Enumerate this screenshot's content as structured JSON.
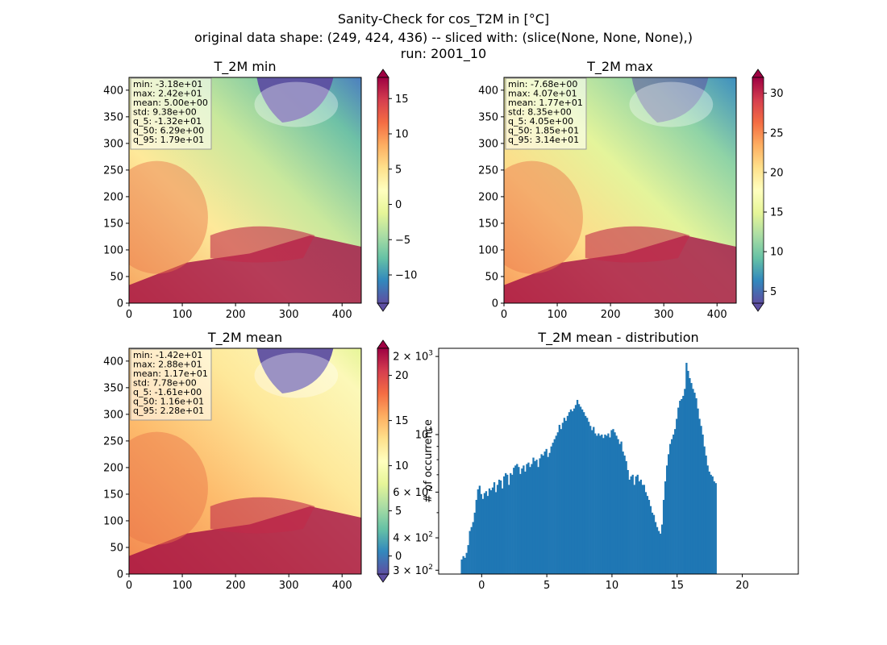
{
  "suptitle": {
    "line1": "Sanity-Check for cos_T2M in [°C]",
    "line2": "original data shape: (249, 424, 436) -- sliced with: (slice(None, None, None),)",
    "line3": "run: 2001_10"
  },
  "colors": {
    "hist_bar": "#1f77b4",
    "land_warm": "#e8744a",
    "sea_hot": "#9e0142",
    "cold": "#5e4fa2"
  },
  "colormap": "Spectral_r",
  "chart_data": [
    {
      "type": "heatmap",
      "title": "T_2M min",
      "xlim": [
        0,
        436
      ],
      "ylim": [
        0,
        424
      ],
      "xticks": [
        0,
        100,
        200,
        300,
        400
      ],
      "yticks": [
        0,
        50,
        100,
        150,
        200,
        250,
        300,
        350,
        400
      ],
      "colorbar": {
        "vmin": -14,
        "vmax": 18,
        "ticks": [
          -10,
          -5,
          0,
          5,
          10,
          15
        ],
        "extend": "both"
      },
      "stats": [
        "min: -3.18e+01",
        "max: 2.42e+01",
        "mean: 5.00e+00",
        "std: 9.38e+00",
        "q_5: -1.32e+01",
        "q_50: 6.29e+00",
        "q_95: 1.79e+01"
      ]
    },
    {
      "type": "heatmap",
      "title": "T_2M max",
      "xlim": [
        0,
        436
      ],
      "ylim": [
        0,
        424
      ],
      "xticks": [
        0,
        100,
        200,
        300,
        400
      ],
      "yticks": [
        0,
        50,
        100,
        150,
        200,
        250,
        300,
        350,
        400
      ],
      "colorbar": {
        "vmin": 3.5,
        "vmax": 32,
        "ticks": [
          5,
          10,
          15,
          20,
          25,
          30
        ],
        "extend": "both"
      },
      "stats": [
        "min: -7.68e+00",
        "max: 4.07e+01",
        "mean: 1.77e+01",
        "std: 8.35e+00",
        "q_5: 4.05e+00",
        "q_50: 1.85e+01",
        "q_95: 3.14e+01"
      ]
    },
    {
      "type": "heatmap",
      "title": "T_2M mean",
      "xlim": [
        0,
        436
      ],
      "ylim": [
        0,
        424
      ],
      "xticks": [
        0,
        100,
        200,
        300,
        400
      ],
      "yticks": [
        0,
        50,
        100,
        150,
        200,
        250,
        300,
        350,
        400
      ],
      "colorbar": {
        "vmin": -2,
        "vmax": 23,
        "ticks": [
          0,
          5,
          10,
          15,
          20
        ],
        "extend": "both"
      },
      "stats": [
        "min: -1.42e+01",
        "max: 2.88e+01",
        "mean: 1.17e+01",
        "std: 7.78e+00",
        "q_5: -1.61e+00",
        "q_50: 1.16e+01",
        "q_95: 2.28e+01"
      ]
    },
    {
      "type": "bar",
      "title": "T_2M mean - distribution",
      "ylabel": "# of occurrence",
      "yscale": "log",
      "xlim": [
        -3.3,
        24.3
      ],
      "ylim": [
        290,
        2150
      ],
      "xticks": [
        0,
        5,
        10,
        15,
        20
      ],
      "ytick_labels": [
        {
          "value": 300,
          "base": "3 × 10",
          "exp": "2"
        },
        {
          "value": 400,
          "base": "4 × 10",
          "exp": "2"
        },
        {
          "value": 600,
          "base": "6 × 10",
          "exp": "2"
        },
        {
          "value": 1000,
          "base": "10",
          "exp": "3"
        },
        {
          "value": 2000,
          "base": "2 × 10",
          "exp": "3"
        }
      ],
      "bin_start": -1.6,
      "bin_width": 0.125,
      "counts": [
        330,
        340,
        335,
        350,
        375,
        425,
        440,
        460,
        500,
        560,
        615,
        635,
        590,
        565,
        595,
        605,
        580,
        620,
        610,
        625,
        655,
        600,
        640,
        670,
        665,
        620,
        690,
        710,
        700,
        640,
        710,
        700,
        745,
        760,
        770,
        750,
        705,
        740,
        760,
        720,
        770,
        780,
        750,
        770,
        815,
        790,
        800,
        750,
        810,
        840,
        830,
        860,
        880,
        820,
        850,
        900,
        930,
        960,
        990,
        1020,
        1090,
        1050,
        1110,
        1160,
        1130,
        1180,
        1220,
        1250,
        1230,
        1260,
        1300,
        1360,
        1310,
        1280,
        1250,
        1220,
        1180,
        1160,
        1120,
        1080,
        1040,
        1070,
        1010,
        990,
        1010,
        990,
        1000,
        970,
        1000,
        990,
        1010,
        975,
        1040,
        1050,
        1020,
        990,
        960,
        920,
        940,
        860,
        830,
        790,
        730,
        670,
        690,
        700,
        640,
        690,
        700,
        660,
        670,
        640,
        640,
        600,
        580,
        560,
        530,
        500,
        490,
        460,
        440,
        425,
        415,
        450,
        560,
        660,
        760,
        840,
        920,
        960,
        1000,
        1050,
        1150,
        1270,
        1350,
        1370,
        1410,
        1500,
        1890,
        1760,
        1650,
        1580,
        1500,
        1450,
        1380,
        1260,
        1150,
        1080,
        1000,
        900,
        830,
        760,
        720,
        700,
        690,
        660,
        650
      ]
    }
  ]
}
